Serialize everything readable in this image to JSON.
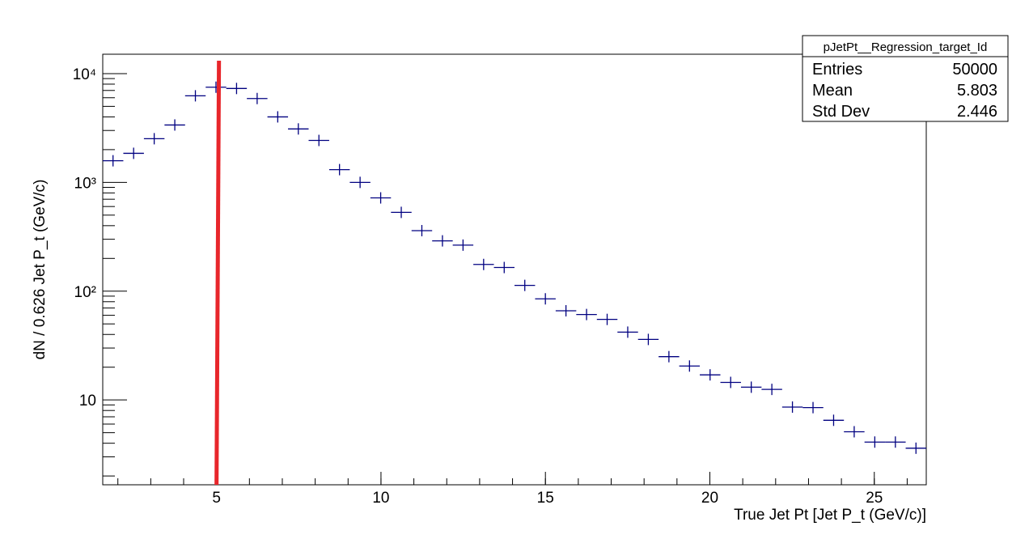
{
  "chart_data": {
    "type": "histogram",
    "x_label": "True Jet Pt  [Jet P_t (GeV/c)]",
    "y_label": "dN / 0.626 Jet P_t (GeV/c)",
    "bins": [
      1.54,
      2.166,
      2.792,
      3.418,
      4.044,
      4.67,
      5.296,
      5.922,
      6.548,
      7.174,
      7.8,
      8.426,
      9.052,
      9.678,
      10.304,
      10.93,
      11.556,
      12.182,
      12.808,
      13.434,
      14.06,
      14.686,
      15.312,
      15.938,
      16.564,
      17.19,
      17.816,
      18.442,
      19.068,
      19.694,
      20.32,
      20.946,
      21.572,
      22.198,
      22.824,
      23.45,
      24.076,
      24.702,
      25.328,
      25.954,
      26.58
    ],
    "values": [
      1580,
      1850,
      2520,
      3370,
      6250,
      7500,
      7300,
      5900,
      4000,
      3100,
      2430,
      1310,
      1000,
      720,
      530,
      360,
      290,
      265,
      176,
      165,
      113,
      85,
      66,
      61,
      55,
      42,
      36,
      25,
      20.5,
      17,
      14.5,
      13.1,
      12.5,
      8.6,
      8.5,
      6.5,
      5.1,
      4.1,
      4.1,
      3.6
    ],
    "color": "#000080",
    "xlim": [
      1.54,
      26.58
    ],
    "xticks": [
      5,
      10,
      15,
      20,
      25
    ],
    "ylim": [
      1.66,
      15070
    ],
    "log_y": true,
    "yticks": [
      10,
      {
        "value": 100,
        "label": "10²"
      },
      {
        "value": 1000,
        "label": "10³"
      },
      {
        "value": 10000,
        "label": "10⁴"
      }
    ],
    "vline": {
      "x": 5,
      "color": "#e8262b"
    },
    "stats": {
      "title": "pJetPt__Regression_target_Id",
      "rows": [
        [
          "Entries",
          50000
        ],
        [
          "Mean",
          5.803
        ],
        [
          "Std Dev",
          2.446
        ]
      ]
    }
  }
}
